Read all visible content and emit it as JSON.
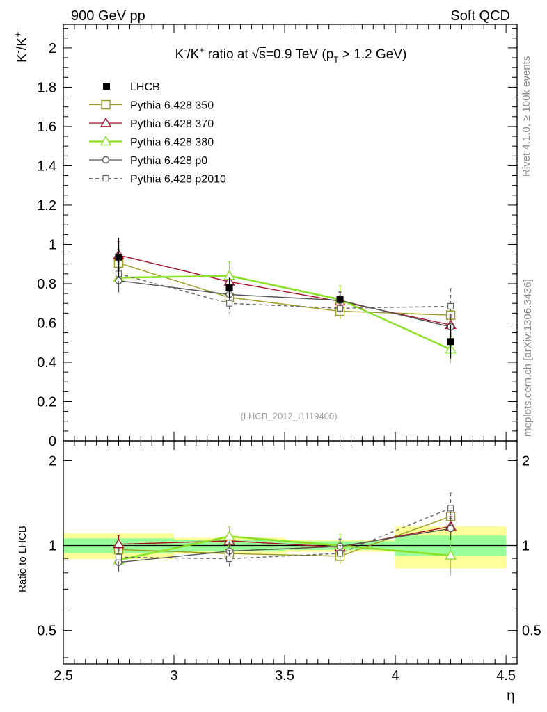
{
  "header": {
    "left_label": "900 GeV pp",
    "right_label": "Soft QCD"
  },
  "side_labels": {
    "rivet": "Rivet 4.1.0, ≥ 100k events",
    "mcplots": "mcplots.cern.ch [arXiv:1306.3436]"
  },
  "chart_data": {
    "type": "scatter",
    "title_parts": {
      "prefix": "K",
      "sup1": "-",
      "mid": "/K",
      "sup2": "+",
      "ratio": " ratio at ",
      "sqrt": "√",
      "s": "s",
      "energy": "=0.9 TeV (p",
      "sub": "T",
      "cut": " > 1.2 GeV)"
    },
    "ylabel_parts": {
      "a": "K",
      "a_sup": "-",
      "b": "/K",
      "b_sup": "+"
    },
    "ratio_ylabel": "Ratio to LHCB",
    "xlabel": "η",
    "analysis_id": "(LHCB_2012_I1119400)",
    "xlim": [
      2.5,
      4.55
    ],
    "ylim_main": [
      0,
      2.12
    ],
    "ylim_ratio": [
      0.38,
      2.35
    ],
    "main_yticks": [
      "0",
      "0.2",
      "0.4",
      "0.6",
      "0.8",
      "1",
      "1.2",
      "1.4",
      "1.6",
      "1.8",
      "2"
    ],
    "ratio_yticks": [
      "0.5",
      "1",
      "2"
    ],
    "xticks": [
      "2.5",
      "3",
      "3.5",
      "4",
      "4.5"
    ],
    "data": {
      "name": "LHCB",
      "x": [
        2.75,
        3.25,
        3.75,
        4.25
      ],
      "xerr": 0.25,
      "y": [
        0.935,
        0.78,
        0.72,
        0.505
      ],
      "stat_rel": [
        0.06,
        0.045,
        0.035,
        0.085
      ],
      "tot_rel": [
        0.105,
        0.065,
        0.05,
        0.17
      ]
    },
    "series": [
      {
        "name": "Pythia 6.428 350",
        "color": "#9a9a1e",
        "marker": "square",
        "dash": false,
        "y": [
          0.905,
          0.73,
          0.66,
          0.64
        ],
        "err": [
          0.07,
          0.05,
          0.04,
          0.06
        ]
      },
      {
        "name": "Pythia 6.428 370",
        "color": "#a8102a",
        "marker": "triangle",
        "dash": false,
        "y": [
          0.945,
          0.81,
          0.71,
          0.59
        ],
        "err": [
          0.07,
          0.05,
          0.045,
          0.05
        ]
      },
      {
        "name": "Pythia 6.428 380",
        "color": "#8ce026",
        "marker": "triangle",
        "dash": false,
        "y": [
          0.83,
          0.84,
          0.72,
          0.465
        ],
        "err": [
          0.07,
          0.07,
          0.07,
          0.07
        ]
      },
      {
        "name": "Pythia 6.428 p0",
        "color": "#555555",
        "marker": "circle",
        "dash": false,
        "y": [
          0.815,
          0.745,
          0.715,
          0.58
        ],
        "err": [
          0.06,
          0.05,
          0.045,
          0.05
        ]
      },
      {
        "name": "Pythia 6.428 p2010",
        "color": "#666666",
        "marker": "square-small",
        "dash": true,
        "y": [
          0.85,
          0.7,
          0.675,
          0.685
        ],
        "err": [
          0.06,
          0.05,
          0.045,
          0.09
        ]
      }
    ]
  }
}
